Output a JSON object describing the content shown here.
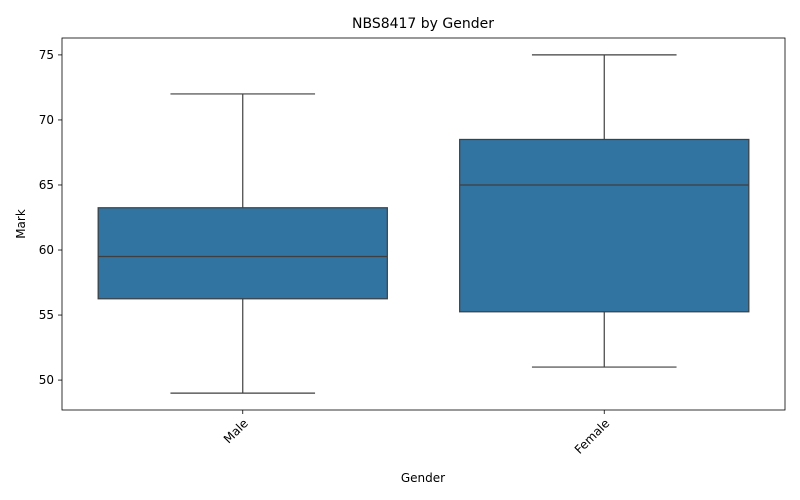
{
  "chart_data": {
    "type": "box",
    "title": "NBS8417 by Gender",
    "xlabel": "Gender",
    "ylabel": "Mark",
    "categories": [
      "Male",
      "Female"
    ],
    "boxes": [
      {
        "category": "Male",
        "min": 49,
        "q1": 56.25,
        "median": 59.5,
        "q3": 63.25,
        "max": 72
      },
      {
        "category": "Female",
        "min": 51,
        "q1": 55.25,
        "median": 65,
        "q3": 68.5,
        "max": 75
      }
    ],
    "ylim": [
      47.7,
      76.3
    ],
    "yticks": [
      50,
      55,
      60,
      65,
      70,
      75
    ],
    "box_color": "#3274a1",
    "line_color": "#3f3f3f",
    "grid": false
  }
}
